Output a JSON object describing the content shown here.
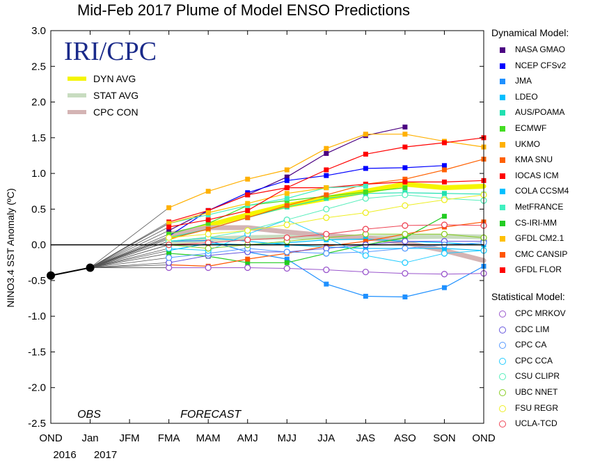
{
  "chart_data": {
    "type": "line",
    "title": "Mid-Feb 2017 Plume of Model ENSO Predictions",
    "ylabel": "NINO3.4 SST Anomaly (ºC)",
    "xlabel": "",
    "ylim": [
      -2.5,
      3.0
    ],
    "yticks": [
      "3.0",
      "2.5",
      "2.0",
      "1.5",
      "1.0",
      "0.5",
      "0.0",
      "-0.5",
      "-1.0",
      "-1.5",
      "-2.0",
      "-2.5"
    ],
    "categories": [
      "OND",
      "Jan",
      "JFM",
      "FMA",
      "MAM",
      "AMJ",
      "MJJ",
      "JJA",
      "JAS",
      "ASO",
      "SON",
      "OND"
    ],
    "year_labels": [
      "2016",
      "2017"
    ],
    "annotations": {
      "obs": "OBS",
      "forecast": "FORECAST",
      "logo": "IRI/CPC"
    },
    "observed": {
      "x": [
        0,
        1
      ],
      "values": [
        -0.43,
        -0.32
      ]
    },
    "averages": [
      {
        "name": "DYN AVG",
        "color": "#f5f500",
        "values": [
          0.1,
          0.27,
          0.42,
          0.55,
          0.65,
          0.75,
          0.85,
          0.8,
          0.82
        ]
      },
      {
        "name": "STAT AVG",
        "color": "#c8dcc0",
        "values": [
          0.02,
          0.08,
          0.1,
          0.11,
          0.11,
          0.1,
          0.11,
          0.12,
          0.11
        ]
      },
      {
        "name": "CPC CON",
        "color": "#d4b4b4",
        "values": [
          0.15,
          0.24,
          0.24,
          0.18,
          0.13,
          0.1,
          0.03,
          -0.08,
          -0.22
        ]
      }
    ],
    "dynamical_heading": "Dynamical Model:",
    "statistical_heading": "Statistical Model:",
    "dynamical_models": [
      {
        "name": "NASA GMAO",
        "color": "#4b0082",
        "values": [
          0.2,
          0.48,
          0.7,
          0.95,
          1.28,
          1.53,
          1.65
        ]
      },
      {
        "name": "NCEP CFSv2",
        "color": "#0000ff",
        "values": [
          0.12,
          0.48,
          0.73,
          0.9,
          0.97,
          1.07,
          1.08,
          1.11
        ]
      },
      {
        "name": "JMA",
        "color": "#1e90ff",
        "values": [
          0.05,
          0.06,
          -0.1,
          -0.2,
          -0.55,
          -0.72,
          -0.73,
          -0.6,
          -0.3
        ]
      },
      {
        "name": "LDEO",
        "color": "#00bfff",
        "values": [
          -0.08,
          0.02,
          0.0,
          0.03,
          0.07,
          0.08,
          0.05,
          0.03,
          0.0
        ]
      },
      {
        "name": "AUS/POAMA",
        "color": "#20e0b0",
        "values": [
          0.1,
          0.22,
          0.38,
          0.53,
          0.65,
          0.72,
          0.73,
          0.72,
          0.71
        ]
      },
      {
        "name": "ECMWF",
        "color": "#44dd22",
        "values": [
          0.15,
          0.3,
          0.55,
          0.62,
          0.68,
          0.74,
          0.8
        ]
      },
      {
        "name": "UKMO",
        "color": "#ffb000",
        "values": [
          0.52,
          0.75,
          0.92,
          1.05,
          1.35,
          1.55,
          1.55,
          1.45,
          1.37
        ]
      },
      {
        "name": "KMA SNU",
        "color": "#ff6000",
        "values": [
          0.08,
          0.22,
          0.38,
          0.55,
          0.7,
          0.85,
          0.92,
          1.05,
          1.2
        ]
      },
      {
        "name": "IOCAS ICM",
        "color": "#ff0000",
        "values": [
          0.32,
          0.48,
          0.7,
          0.8,
          0.8,
          0.85,
          0.88,
          0.88,
          0.9
        ]
      },
      {
        "name": "COLA CCSM4",
        "color": "#00c0ff",
        "values": [
          0.05,
          0.1,
          0.05,
          0.0,
          -0.03,
          -0.05,
          -0.05,
          -0.05,
          -0.08
        ]
      },
      {
        "name": "MetFRANCE",
        "color": "#40f0c0",
        "values": [
          0.3,
          0.42,
          0.55,
          0.65,
          0.8,
          0.82
        ]
      },
      {
        "name": "CS-IRI-MM",
        "color": "#22cc22",
        "values": [
          -0.12,
          -0.16,
          -0.25,
          -0.25,
          -0.12,
          0.0,
          0.1,
          0.4
        ]
      },
      {
        "name": "GFDL CM2.1",
        "color": "#ffc000",
        "values": [
          0.3,
          0.45,
          0.58,
          0.72,
          0.8
        ]
      },
      {
        "name": "CMC CANSIP",
        "color": "#ff5500",
        "values": [
          -0.28,
          -0.3,
          -0.2,
          -0.12,
          -0.02,
          0.05,
          0.15,
          0.25,
          0.32
        ]
      },
      {
        "name": "GFDL FLOR",
        "color": "#ff0000",
        "values": [
          0.25,
          0.35,
          0.48,
          0.8,
          1.05,
          1.27,
          1.37,
          1.43,
          1.5
        ]
      }
    ],
    "statistical_models": [
      {
        "name": "CPC MRKOV",
        "color": "#9955cc",
        "values": [
          -0.32,
          -0.32,
          -0.32,
          -0.33,
          -0.35,
          -0.38,
          -0.4,
          -0.41,
          -0.4
        ]
      },
      {
        "name": "CDC LIM",
        "color": "#6655dd",
        "values": [
          -0.25,
          -0.15,
          -0.1,
          -0.1,
          -0.05,
          0.0,
          0.05,
          0.05,
          0.05
        ]
      },
      {
        "name": "CPC CA",
        "color": "#5599ff",
        "values": [
          -0.18,
          -0.12,
          -0.05,
          -0.1,
          -0.12,
          -0.1,
          -0.05,
          0.0,
          0.03
        ]
      },
      {
        "name": "CPC CCA",
        "color": "#22ccff",
        "values": [
          -0.05,
          -0.08,
          0.15,
          0.35,
          0.1,
          -0.15,
          -0.25,
          -0.12,
          -0.08
        ]
      },
      {
        "name": "CSU CLIPR",
        "color": "#55eebb",
        "values": [
          0.05,
          0.1,
          0.2,
          0.35,
          0.5,
          0.65,
          0.7,
          0.65,
          0.62
        ]
      },
      {
        "name": "UBC NNET",
        "color": "#88cc22",
        "values": [
          0.0,
          -0.05,
          0.0,
          0.05,
          0.1,
          0.15,
          0.15,
          0.15,
          0.1
        ]
      },
      {
        "name": "FSU REGR",
        "color": "#eeee22",
        "values": [
          0.1,
          0.15,
          0.2,
          0.28,
          0.38,
          0.45,
          0.55,
          0.63,
          0.7
        ]
      },
      {
        "name": "UCLA-TCD",
        "color": "#ee4455",
        "values": [
          0.0,
          0.03,
          0.07,
          0.1,
          0.15,
          0.22,
          0.27,
          0.28,
          0.27
        ]
      }
    ]
  }
}
